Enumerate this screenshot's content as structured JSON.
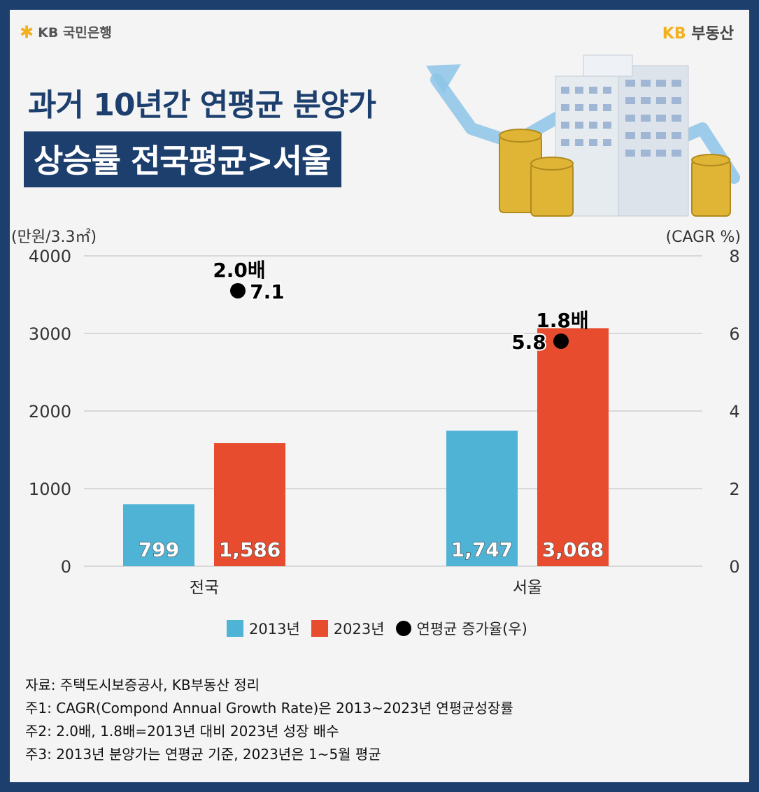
{
  "brand": {
    "left_logo": "KB 국민은행",
    "right_kb": "KB",
    "right_text": "부동산"
  },
  "title": {
    "line1": "과거 10년간 연평균 분양가",
    "line2": "상승률 전국평균>서울"
  },
  "chart_data": {
    "type": "bar",
    "categories": [
      "전국",
      "서울"
    ],
    "series": [
      {
        "name": "2013년",
        "values": [
          799,
          1747
        ],
        "labels": [
          "799",
          "1,747"
        ],
        "color": "#4fb3d6"
      },
      {
        "name": "2023년",
        "values": [
          1586,
          3068
        ],
        "labels": [
          "1,586",
          "3,068"
        ],
        "color": "#e84c2e"
      }
    ],
    "cagr": {
      "name": "연평균 증가율(우)",
      "values": [
        7.1,
        5.8
      ],
      "labels": [
        "7.1",
        "5.8"
      ],
      "multiples": [
        "2.0배",
        "1.8배"
      ]
    },
    "ylabel_left": "(만원/3.3㎡)",
    "ylabel_right": "(CAGR %)",
    "ylim_left": [
      0,
      4000
    ],
    "yticks_left": [
      "0",
      "1000",
      "2000",
      "3000",
      "4000"
    ],
    "ylim_right": [
      0,
      8
    ],
    "yticks_right": [
      "0",
      "2",
      "4",
      "6",
      "8"
    ],
    "grid": true,
    "legend_position": "bottom"
  },
  "notes": [
    "자료: 주택도시보증공사, KB부동산 정리",
    "주1: CAGR(Compond Annual Growth Rate)은 2013~2023년 연평균성장률",
    "주2: 2.0배, 1.8배=2013년 대비 2023년 성장 배수",
    "주3: 2013년 분양가는 연평균 기준, 2023년은 1~5월 평균"
  ]
}
